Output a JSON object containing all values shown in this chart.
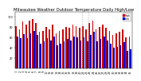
{
  "title": "Milwaukee Weather Outdoor Temperature Daily High/Low",
  "title_fontsize": 3.8,
  "background_color": "#ffffff",
  "bar_width": 0.4,
  "tick_fontsize": 2.5,
  "ylim": [
    0,
    110
  ],
  "yticks": [
    20,
    40,
    60,
    80,
    100
  ],
  "high_color": "#cc0000",
  "low_color": "#0000cc",
  "dashed_color": "#aaaaaa",
  "dates": [
    "1",
    "2",
    "3",
    "4",
    "5",
    "6",
    "7",
    "8",
    "9",
    "10",
    "11",
    "12",
    "13",
    "14",
    "15",
    "16",
    "17",
    "18",
    "19",
    "20",
    "21",
    "22",
    "23",
    "24",
    "25",
    "26",
    "27",
    "28",
    "29",
    "30",
    "31",
    "32",
    "33",
    "34",
    "35"
  ],
  "highs": [
    82,
    75,
    90,
    85,
    92,
    95,
    88,
    70,
    72,
    80,
    76,
    85,
    68,
    72,
    75,
    80,
    78,
    85,
    82,
    78,
    82,
    75,
    88,
    92,
    75,
    80,
    85,
    78,
    72,
    65,
    68,
    70,
    75,
    60,
    62
  ],
  "lows": [
    62,
    58,
    66,
    58,
    68,
    72,
    64,
    48,
    52,
    58,
    54,
    62,
    44,
    48,
    52,
    56,
    54,
    62,
    60,
    54,
    60,
    52,
    64,
    70,
    52,
    56,
    62,
    54,
    48,
    40,
    42,
    44,
    50,
    34,
    36
  ],
  "dashed_lines": [
    19.5,
    21.5
  ],
  "legend_high": "High",
  "legend_low": "Low"
}
